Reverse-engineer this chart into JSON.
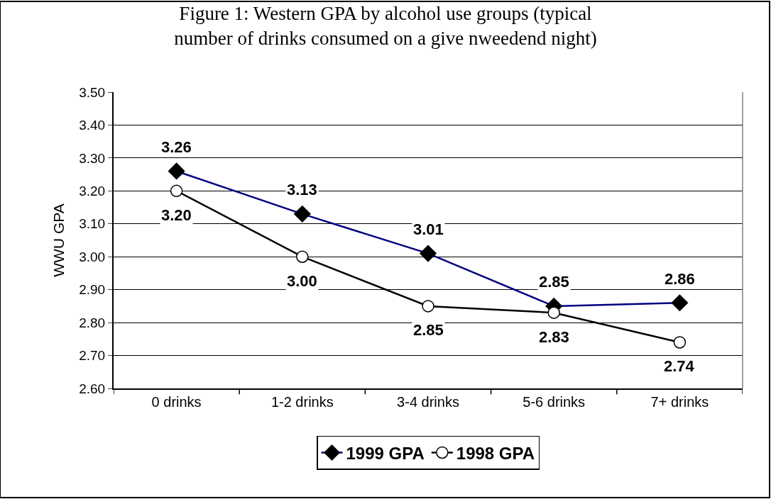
{
  "chart_data": {
    "type": "line",
    "title": "Figure 1: Western GPA by alcohol use groups (typical number of drinks consumed on a give nweedend night)",
    "ylabel": "WWU GPA",
    "categories": [
      "0 drinks",
      "1-2 drinks",
      "3-4 drinks",
      "5-6 drinks",
      "7+ drinks"
    ],
    "series": [
      {
        "name": "1999 GPA",
        "color": "#000080",
        "marker": "diamond",
        "values": [
          3.26,
          3.13,
          3.01,
          2.85,
          2.86
        ],
        "value_labels": [
          "3.26",
          "3.13",
          "3.01",
          "2.85",
          "2.86"
        ]
      },
      {
        "name": "1998 GPA",
        "color": "#000000",
        "marker": "circle",
        "values": [
          3.2,
          3.0,
          2.85,
          2.83,
          2.74
        ],
        "value_labels": [
          "3.20",
          "3.00",
          "2.85",
          "2.83",
          "2.74"
        ]
      }
    ],
    "ylim": [
      2.6,
      3.5
    ],
    "yticks": [
      {
        "value": 2.6,
        "label": "2.60"
      },
      {
        "value": 2.7,
        "label": "2.70"
      },
      {
        "value": 2.8,
        "label": "2.80"
      },
      {
        "value": 2.9,
        "label": "2.90"
      },
      {
        "value": 3.0,
        "label": "3.00"
      },
      {
        "value": 3.1,
        "label": "3.10"
      },
      {
        "value": 3.2,
        "label": "3.20"
      },
      {
        "value": 3.3,
        "label": "3.30"
      },
      {
        "value": 3.4,
        "label": "3.40"
      },
      {
        "value": 3.5,
        "label": "3.50"
      }
    ],
    "grid": "y",
    "legend": "bottom",
    "line_style": "solid"
  }
}
